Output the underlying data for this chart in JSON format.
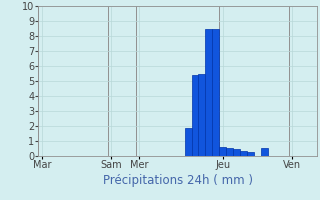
{
  "xlabel": "Précipitations 24h ( mm )",
  "background_color": "#d4eef0",
  "grid_color": "#b8d8d8",
  "bar_color": "#1155dd",
  "bar_edge_color": "#0033aa",
  "ylim": [
    0,
    10
  ],
  "yticks": [
    0,
    1,
    2,
    3,
    4,
    5,
    6,
    7,
    8,
    9,
    10
  ],
  "num_bars": 40,
  "bar_values": [
    0,
    0,
    0,
    0,
    0,
    0,
    0,
    0,
    0,
    0,
    0,
    0,
    0,
    0,
    0,
    0,
    0,
    0,
    0,
    0,
    0,
    1.85,
    5.4,
    5.5,
    8.5,
    8.5,
    0.6,
    0.55,
    0.45,
    0.35,
    0.3,
    0.0,
    0.55,
    0,
    0,
    0,
    0,
    0,
    0,
    0
  ],
  "day_labels": [
    "Mar",
    "Sam",
    "Mer",
    "Jeu",
    "Ven"
  ],
  "day_x": [
    0,
    10,
    14,
    26,
    36
  ],
  "xlabel_fontsize": 8.5,
  "tick_fontsize": 7,
  "xlabel_color": "#4466aa"
}
